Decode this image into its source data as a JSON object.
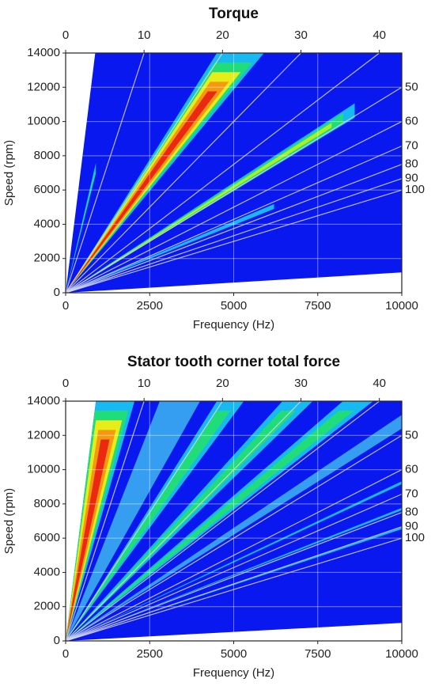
{
  "chart_data": [
    {
      "type": "campbell",
      "title": "Torque",
      "xlabel": "Frequency (Hz)",
      "ylabel": "Speed (rpm)",
      "xlim": [
        0,
        10000
      ],
      "xticks": [
        0,
        2500,
        5000,
        7500,
        10000
      ],
      "ylim": [
        0,
        14000
      ],
      "yticks": [
        0,
        2000,
        4000,
        6000,
        8000,
        10000,
        12000,
        14000
      ],
      "x2lim": [
        0,
        42.857
      ],
      "x2ticks": [
        0,
        10,
        20,
        30,
        40
      ],
      "order_lines": [
        10,
        20,
        30,
        40,
        50,
        60,
        70,
        80,
        90,
        100
      ],
      "grid": true
    },
    {
      "type": "campbell",
      "title": "Stator tooth corner total force",
      "xlabel": "Frequency (Hz)",
      "ylabel": "Speed (rpm)",
      "xlim": [
        0,
        10000
      ],
      "xticks": [
        0,
        2500,
        5000,
        7500,
        10000
      ],
      "ylim": [
        0,
        14000
      ],
      "yticks": [
        0,
        2000,
        4000,
        6000,
        8000,
        10000,
        12000,
        14000
      ],
      "x2lim": [
        0,
        42.857
      ],
      "x2ticks": [
        0,
        10,
        20,
        30,
        40
      ],
      "order_lines": [
        10,
        20,
        30,
        40,
        50,
        60,
        70,
        80,
        90,
        100
      ],
      "grid": true
    }
  ]
}
